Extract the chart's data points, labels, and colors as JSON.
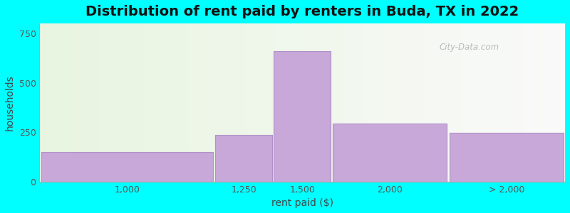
{
  "title": "Distribution of rent paid by renters in Buda, TX in 2022",
  "xlabel": "rent paid ($)",
  "ylabel": "households",
  "bar_tick_labels": [
    "1,000",
    "1,250",
    "1,500",
    "2,000",
    "> 2,000"
  ],
  "bar_values": [
    150,
    235,
    660,
    295,
    245
  ],
  "bar_color": "#c8a8d8",
  "bar_edgecolor": "#b090c8",
  "bar_width": 0.98,
  "ylim": [
    0,
    800
  ],
  "yticks": [
    0,
    250,
    500,
    750
  ],
  "background_color": "#00ffff",
  "title_fontsize": 14,
  "axis_label_fontsize": 10,
  "tick_fontsize": 9,
  "watermark_text": "City-Data.com",
  "watermark_color": "#b0b0b0"
}
